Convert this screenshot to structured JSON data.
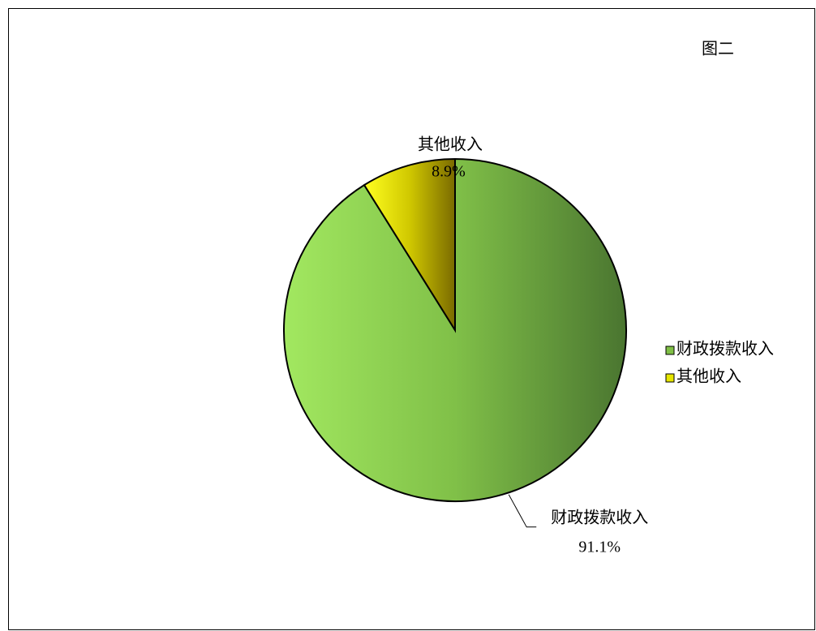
{
  "chart_data": {
    "type": "pie",
    "title": "图二",
    "categories": [
      "财政拨款收入",
      "其他收入"
    ],
    "values": [
      91.1,
      8.9
    ],
    "value_labels": [
      "91.1%",
      "8.9%"
    ],
    "colors": [
      "#7fbf45",
      "#e6e600"
    ],
    "legend": "right"
  }
}
